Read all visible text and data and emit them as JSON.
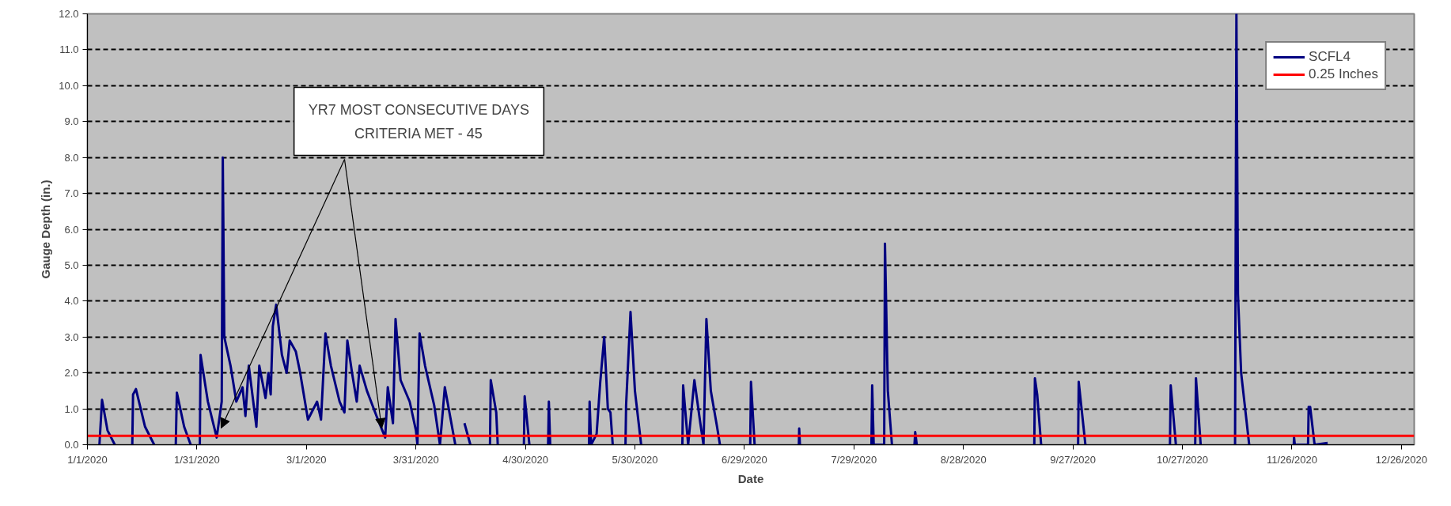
{
  "chart_data": {
    "type": "line",
    "xlabel": "Date",
    "ylabel": "Gauge Depth (in.)",
    "x": [
      "2020-01-04T07:00",
      "2020-01-05T00:00",
      "2020-01-06T12:00",
      "2020-01-08T12:00",
      "2020-01-11",
      "2020-01-13T07:00",
      "2020-01-13T12:00",
      "2020-01-14T07:00",
      "2020-01-16T19:00",
      "2020-01-19T07:00",
      "2020-01-22",
      "2020-01-25T05:00",
      "2020-01-25T12:00",
      "2020-01-27T12:00",
      "2020-01-29T07:00",
      "2020-01-31",
      "2020-01-31T19:00",
      "2020-02-01T00:00",
      "2020-02-03T00:00",
      "2020-02-05T10:00",
      "2020-02-06T19:00",
      "2020-02-07T02:00",
      "2020-02-07T12:00",
      "2020-02-09T05:00",
      "2020-02-10T19:00",
      "2020-02-12T12:00",
      "2020-02-13T07:00",
      "2020-02-14T05:00",
      "2020-02-16T07:00",
      "2020-02-17T02:00",
      "2020-02-18T19:00",
      "2020-02-19T14:00",
      "2020-02-20T05:00",
      "2020-02-20T19:00",
      "2020-02-21T17:00",
      "2020-02-23T07:00",
      "2020-02-24T14:00",
      "2020-02-25T10:00",
      "2020-02-27T02:00",
      "2020-02-28T07:00",
      "2020-03-01T10:00",
      "2020-03-03T22:00",
      "2020-03-05T00:00",
      "2020-03-06T05:00",
      "2020-03-07T17:00",
      "2020-03-10T02:00",
      "2020-03-11T10:00",
      "2020-03-12T05:00",
      "2020-03-13T12:00",
      "2020-03-14T19:00",
      "2020-03-15T14:00",
      "2020-03-17T14:00",
      "2020-03-20T05:00",
      "2020-03-21T19:00",
      "2020-03-22T14:00",
      "2020-03-23T07:00",
      "2020-03-24T17:00",
      "2020-03-25T10:00",
      "2020-03-26T19:00",
      "2020-03-29T07:00",
      "2020-03-31T00:00",
      "2020-03-31T10:00",
      "2020-04-01T00:00",
      "2020-04-02T12:00",
      "2020-04-05T00:00",
      "2020-04-06T14:00",
      "2020-04-07T22:00",
      "2020-04-10T19:00",
      "2020-04-12",
      "2020-04-13T07:00",
      "2020-04-14T22:00",
      "2020-04-17",
      "2020-04-20T07:00",
      "2020-04-20T12:00",
      "2020-04-22T00:00",
      "2020-04-22T10:00",
      "2020-04-26",
      "2020-04-29T14:00",
      "2020-04-29T19:00",
      "2020-05-01T02:00",
      "2020-05-03",
      "2020-05-06T05:00",
      "2020-05-06T10:00",
      "2020-05-06T19:00",
      "2020-05-12",
      "2020-05-17T10:00",
      "2020-05-17T14:00",
      "2020-05-18T00:00",
      "2020-05-19T12:00",
      "2020-05-20T12:00",
      "2020-05-21T14:00",
      "2020-05-22T14:00",
      "2020-05-23T07:00",
      "2020-05-23T22:00",
      "2020-05-25T12:00",
      "2020-05-27T10:00",
      "2020-05-27T14:00",
      "2020-05-28T19:00",
      "2020-05-30T00:00",
      "2020-05-31T17:00",
      "2020-06-05",
      "2020-06-12T00:00",
      "2020-06-12T05:00",
      "2020-06-13T14:00",
      "2020-06-15T07:00",
      "2020-06-16T22:00",
      "2020-06-17T19:00",
      "2020-06-18T14:00",
      "2020-06-19T19:00",
      "2020-06-21T12:00",
      "2020-06-22T07:00",
      "2020-06-26",
      "2020-06-30T14:00",
      "2020-06-30T19:00",
      "2020-07-01T19:00",
      "2020-07-07",
      "2020-07-13T22:00",
      "2020-07-14T00:00",
      "2020-07-14T05:00",
      "2020-07-24",
      "2020-08-02T19:00",
      "2020-08-03T00:00",
      "2020-08-03T10:00",
      "2020-08-06T07:00",
      "2020-08-06T12:00",
      "2020-08-07T07:00",
      "2020-08-08T10:00",
      "2020-08-11",
      "2020-08-14T14:00",
      "2020-08-14T19:00",
      "2020-08-15T05:00",
      "2020-08-28",
      "2020-09-16T10:00",
      "2020-09-16T14:00",
      "2020-09-17T05:00",
      "2020-09-18T07:00",
      "2020-09-22",
      "2020-09-28T10:00",
      "2020-09-28T14:00",
      "2020-09-30T10:00",
      "2020-10-12",
      "2020-10-23T14:00",
      "2020-10-23T19:00",
      "2020-10-25T05:00",
      "2020-10-27",
      "2020-10-30T12:00",
      "2020-10-30T17:00",
      "2020-11-01T00:00",
      "2020-11-06",
      "2020-11-10T10:00",
      "2020-11-10T19:00",
      "2020-11-11T05:00",
      "2020-11-12T02:00",
      "2020-11-14T07:00",
      "2020-11-21",
      "2020-11-26T12:00",
      "2020-11-26T14:00",
      "2020-11-26T19:00",
      "2020-11-30T10:00",
      "2020-11-30T14:00",
      "2020-12-01T00:00",
      "2020-12-02T05:00",
      "2020-12-05T19:00"
    ],
    "series": [
      {
        "name": "SCFL4",
        "color": "#000080",
        "values": [
          0,
          1.25,
          0.4,
          0,
          null,
          0,
          1.4,
          1.55,
          0.5,
          0,
          null,
          0,
          1.45,
          0.5,
          0,
          null,
          0,
          2.5,
          1.2,
          0.2,
          1.2,
          8.0,
          3.0,
          2.2,
          1.2,
          1.6,
          0.8,
          2.2,
          0.5,
          2.2,
          1.3,
          2.0,
          1.4,
          3.3,
          3.9,
          2.5,
          2.0,
          2.9,
          2.6,
          2.0,
          0.7,
          1.2,
          0.7,
          3.1,
          2.2,
          1.2,
          0.9,
          2.9,
          2.0,
          1.2,
          2.2,
          1.5,
          0.8,
          0.4,
          0.2,
          1.6,
          0.6,
          3.5,
          1.8,
          1.2,
          0.4,
          0,
          3.1,
          2.2,
          1.1,
          0,
          1.6,
          0,
          null,
          0.6,
          0,
          null,
          0,
          1.8,
          0.9,
          0,
          null,
          0,
          1.35,
          0,
          null,
          0,
          1.2,
          0,
          null,
          0,
          1.2,
          0,
          0.3,
          1.75,
          3.0,
          1.0,
          0.9,
          0,
          null,
          0,
          1.1,
          3.7,
          1.5,
          0,
          null,
          0,
          1.65,
          0,
          1.8,
          0.6,
          0,
          3.5,
          1.5,
          0.5,
          0,
          null,
          0,
          1.75,
          0,
          null,
          0,
          0.45,
          0,
          null,
          0,
          1.65,
          0,
          0,
          5.6,
          1.5,
          0,
          null,
          0,
          0.35,
          0,
          null,
          0,
          1.85,
          1.4,
          0,
          null,
          0,
          1.75,
          0,
          null,
          0,
          1.65,
          0,
          null,
          0,
          1.85,
          0,
          null,
          0,
          12.0,
          4.2,
          2.0,
          0,
          null,
          0,
          0.2,
          0,
          0,
          1.05,
          1.05,
          0,
          0.05
        ]
      }
    ],
    "xlim": [
      "2020-01-01",
      "2020-12-29T12:00"
    ],
    "xticks": [
      {
        "value": "2020-01-01",
        "label": "1/1/2020"
      },
      {
        "value": "2020-01-31",
        "label": "1/31/2020"
      },
      {
        "value": "2020-03-01",
        "label": "3/1/2020"
      },
      {
        "value": "2020-03-31",
        "label": "3/31/2020"
      },
      {
        "value": "2020-04-30",
        "label": "4/30/2020"
      },
      {
        "value": "2020-05-30",
        "label": "5/30/2020"
      },
      {
        "value": "2020-06-29",
        "label": "6/29/2020"
      },
      {
        "value": "2020-07-29",
        "label": "7/29/2020"
      },
      {
        "value": "2020-08-28",
        "label": "8/28/2020"
      },
      {
        "value": "2020-09-27",
        "label": "9/27/2020"
      },
      {
        "value": "2020-10-27",
        "label": "10/27/2020"
      },
      {
        "value": "2020-11-26",
        "label": "11/26/2020"
      },
      {
        "value": "2020-12-26",
        "label": "12/26/2020"
      }
    ],
    "ylim": [
      0,
      12
    ],
    "yticks": [
      {
        "value": 0,
        "label": "0.0"
      },
      {
        "value": 1,
        "label": "1.0"
      },
      {
        "value": 2,
        "label": "2.0"
      },
      {
        "value": 3,
        "label": "3.0"
      },
      {
        "value": 4,
        "label": "4.0"
      },
      {
        "value": 5,
        "label": "5.0"
      },
      {
        "value": 6,
        "label": "6.0"
      },
      {
        "value": 7,
        "label": "7.0"
      },
      {
        "value": 8,
        "label": "8.0"
      },
      {
        "value": 9,
        "label": "9.0"
      },
      {
        "value": 10,
        "label": "10.0"
      },
      {
        "value": 11,
        "label": "11.0"
      },
      {
        "value": 12,
        "label": "12.0"
      }
    ],
    "ref_lines": [
      {
        "axis": "y",
        "value": 0.25,
        "label": "0.25 Inches",
        "color": "#ff0000"
      }
    ],
    "annotations": [
      "YR7 MOST CONSECUTIVE DAYS\nCRITERIA MET - 45"
    ],
    "grid": "y",
    "legend": "top right",
    "line_style": "solid"
  }
}
